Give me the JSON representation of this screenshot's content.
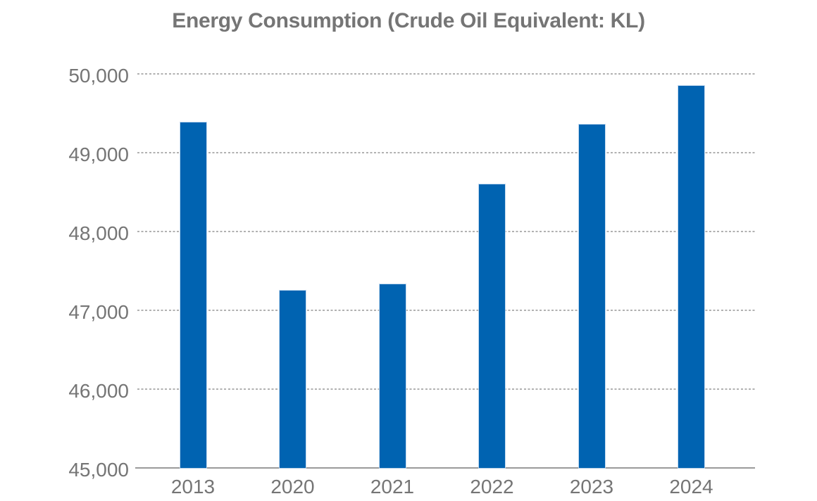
{
  "page": {
    "background_color": "#ffffff",
    "text_color": "#757575"
  },
  "chart_data": {
    "type": "bar",
    "title": "Energy Consumption (Crude Oil Equivalent: KL)",
    "categories": [
      "2013",
      "2020",
      "2021",
      "2022",
      "2023",
      "2024"
    ],
    "values": [
      49380,
      47250,
      47330,
      48600,
      49360,
      49850
    ],
    "series": [
      {
        "name": "Energy Consumption (Crude Oil Equivalent: KL)",
        "values": [
          49380,
          47250,
          47330,
          48600,
          49360,
          49850
        ]
      }
    ],
    "xlabel": "",
    "ylabel": "",
    "unit": "KL",
    "ylim": [
      45000,
      50000
    ],
    "yticks": [
      45000,
      46000,
      47000,
      48000,
      49000,
      50000
    ],
    "ytick_labels": [
      "45,000",
      "46,000",
      "47,000",
      "48,000",
      "49,000",
      "50,000"
    ],
    "grid": "horizontal-dashed",
    "legend": "none",
    "bar_color": "#0063B1",
    "bar_border_color": "#bed6ee",
    "gridline_color": "#b1b1b1",
    "axis_line_color": "#9a9a9a",
    "title_color": "#757575",
    "tick_label_color": "#757575"
  }
}
